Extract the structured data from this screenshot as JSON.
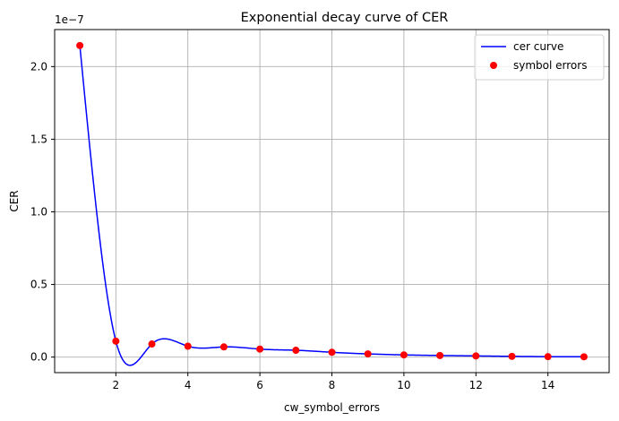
{
  "chart_data": {
    "type": "line",
    "title": "Exponential decay curve of CER",
    "xlabel": "cw_symbol_errors",
    "ylabel": "CER",
    "offset_text": "1e−7",
    "xlim": [
      0.3,
      15.7
    ],
    "ylim": [
      -1.07e-08,
      2.255e-07
    ],
    "xticks": [
      2,
      4,
      6,
      8,
      10,
      12,
      14
    ],
    "xtick_labels": [
      "2",
      "4",
      "6",
      "8",
      "10",
      "12",
      "14"
    ],
    "yticks": [
      0,
      5e-08,
      1e-07,
      1.5e-07,
      2e-07
    ],
    "ytick_labels": [
      "0.0",
      "0.5",
      "1.0",
      "1.5",
      "2.0"
    ],
    "grid": true,
    "legend_position": "top-right",
    "series": [
      {
        "name": "cer curve",
        "type": "line",
        "color": "#0000ff",
        "x": [
          1,
          2,
          3,
          4,
          5,
          6,
          7,
          8,
          9,
          10,
          11,
          12,
          13,
          14,
          15
        ],
        "y": [
          2.145e-07,
          1.1e-08,
          9e-09,
          7.5e-09,
          7e-09,
          5.5e-09,
          4.7e-09,
          3.3e-09,
          2.2e-09,
          1.5e-09,
          1.1e-09,
          8e-10,
          5e-10,
          3e-10,
          2e-10
        ]
      },
      {
        "name": "symbol errors",
        "type": "scatter",
        "color": "#ff0000",
        "x": [
          1,
          2,
          3,
          4,
          5,
          6,
          7,
          8,
          9,
          10,
          11,
          12,
          13,
          14,
          15
        ],
        "y": [
          2.145e-07,
          1.1e-08,
          9e-09,
          7.5e-09,
          7e-09,
          5.5e-09,
          4.7e-09,
          3.3e-09,
          2.2e-09,
          1.5e-09,
          1.1e-09,
          8e-10,
          5e-10,
          3e-10,
          2e-10
        ]
      }
    ]
  }
}
